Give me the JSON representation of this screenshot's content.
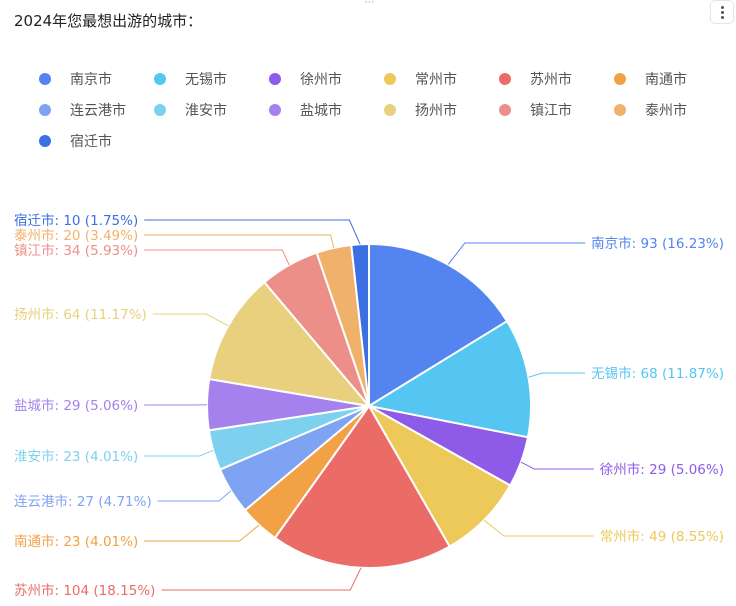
{
  "title": "2024年您最想出游的城市：",
  "icons": {
    "drag": "drag-handle-icon",
    "menu": "more-vertical-icon"
  },
  "chart_data": {
    "type": "pie",
    "title": "2024年您最想出游的城市：",
    "legend_position": "top",
    "slices": [
      {
        "name": "南京市",
        "value": 93,
        "percent": "16.23%",
        "color": "#5384f0"
      },
      {
        "name": "无锡市",
        "value": 68,
        "percent": "11.87%",
        "color": "#55c5f2"
      },
      {
        "name": "徐州市",
        "value": 29,
        "percent": "5.06%",
        "color": "#8e5ae8"
      },
      {
        "name": "常州市",
        "value": 49,
        "percent": "8.55%",
        "color": "#edc95a"
      },
      {
        "name": "苏州市",
        "value": 104,
        "percent": "18.15%",
        "color": "#eb6c66"
      },
      {
        "name": "南通市",
        "value": 23,
        "percent": "4.01%",
        "color": "#f2a144"
      },
      {
        "name": "连云港市",
        "value": 27,
        "percent": "4.71%",
        "color": "#7ea3f2"
      },
      {
        "name": "淮安市",
        "value": 23,
        "percent": "4.01%",
        "color": "#7dd1ef"
      },
      {
        "name": "盐城市",
        "value": 29,
        "percent": "5.06%",
        "color": "#a581ed"
      },
      {
        "name": "扬州市",
        "value": 64,
        "percent": "11.17%",
        "color": "#e9d07e"
      },
      {
        "name": "镇江市",
        "value": 34,
        "percent": "5.93%",
        "color": "#ec8f88"
      },
      {
        "name": "泰州市",
        "value": 20,
        "percent": "3.49%",
        "color": "#f0b26a"
      },
      {
        "name": "宿迁市",
        "value": 10,
        "percent": "1.75%",
        "color": "#3b6fe2"
      }
    ]
  }
}
